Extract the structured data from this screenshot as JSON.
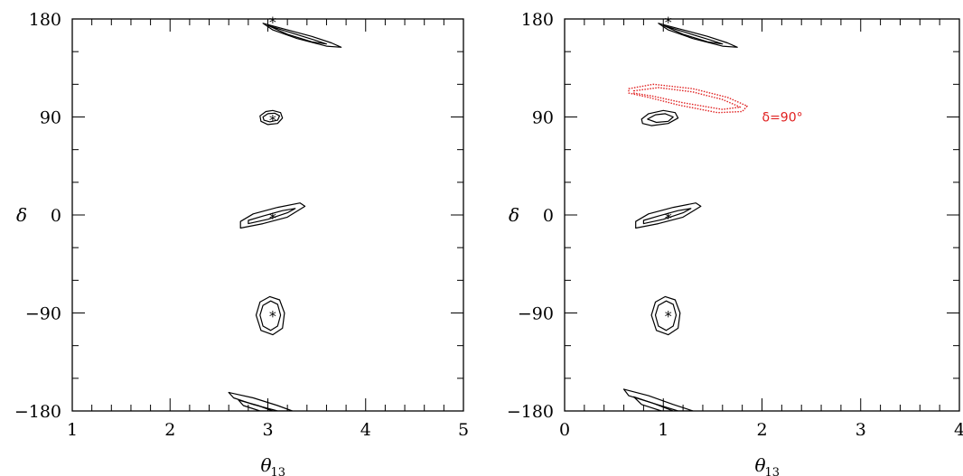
{
  "chart_data": [
    {
      "type": "scatter",
      "panel": "left",
      "xlabel": "θ",
      "xlabel_sub": "13",
      "ylabel": "δ",
      "xlim": [
        1,
        5
      ],
      "ylim": [
        -180,
        180
      ],
      "x_ticks": [
        "1",
        "2",
        "3",
        "4",
        "5"
      ],
      "y_ticks": [
        "−180",
        "−90",
        "0",
        "90",
        "180"
      ],
      "y_tick_values": [
        -180,
        -90,
        0,
        90,
        180
      ],
      "x_tick_values": [
        1,
        2,
        3,
        4,
        5
      ],
      "true_points": [
        {
          "x": 3.05,
          "y": 180
        },
        {
          "x": 3.05,
          "y": 90
        },
        {
          "x": 3.05,
          "y": 0
        },
        {
          "x": 3.05,
          "y": -90
        }
      ],
      "contours": [
        {
          "name": "",
          "color": "#000000",
          "style": "solid",
          "points": [
            [
              2.95,
              176
            ],
            [
              3.2,
              170
            ],
            [
              3.45,
              164
            ],
            [
              3.65,
              158
            ],
            [
              3.75,
              154
            ],
            [
              3.6,
              155
            ],
            [
              3.3,
              162
            ],
            [
              3.05,
              170
            ],
            [
              2.95,
              176
            ]
          ]
        },
        {
          "name": "",
          "color": "#000000",
          "style": "solid",
          "points": [
            [
              3.0,
              174
            ],
            [
              3.25,
              167
            ],
            [
              3.5,
              160
            ],
            [
              3.6,
              157
            ],
            [
              3.45,
              159
            ],
            [
              3.2,
              166
            ],
            [
              3.0,
              174
            ]
          ]
        },
        {
          "name": "",
          "color": "#000000",
          "style": "solid",
          "points": [
            [
              2.92,
              91
            ],
            [
              2.98,
              95
            ],
            [
              3.05,
              96
            ],
            [
              3.13,
              94
            ],
            [
              3.15,
              89
            ],
            [
              3.1,
              84
            ],
            [
              3.0,
              83
            ],
            [
              2.93,
              86
            ],
            [
              2.92,
              91
            ]
          ]
        },
        {
          "name": "",
          "color": "#000000",
          "style": "solid",
          "points": [
            [
              2.95,
              90
            ],
            [
              3.0,
              93
            ],
            [
              3.07,
              93.5
            ],
            [
              3.12,
              91
            ],
            [
              3.1,
              87
            ],
            [
              3.02,
              85.5
            ],
            [
              2.96,
              87
            ],
            [
              2.95,
              90
            ]
          ]
        },
        {
          "name": "",
          "color": "#000000",
          "style": "solid",
          "points": [
            [
              2.72,
              -12
            ],
            [
              2.95,
              -8
            ],
            [
              3.2,
              -2
            ],
            [
              3.38,
              8
            ],
            [
              3.33,
              11
            ],
            [
              3.1,
              7
            ],
            [
              2.85,
              1
            ],
            [
              2.72,
              -6
            ],
            [
              2.72,
              -12
            ]
          ]
        },
        {
          "name": "",
          "color": "#000000",
          "style": "solid",
          "points": [
            [
              2.8,
              -8
            ],
            [
              3.0,
              -4
            ],
            [
              3.2,
              2
            ],
            [
              3.28,
              6
            ],
            [
              3.15,
              4
            ],
            [
              2.95,
              -1
            ],
            [
              2.8,
              -5
            ],
            [
              2.8,
              -8
            ]
          ]
        },
        {
          "name": "",
          "color": "#000000",
          "style": "solid",
          "points": [
            [
              2.88,
              -92
            ],
            [
              2.92,
              -80
            ],
            [
              3.02,
              -75
            ],
            [
              3.12,
              -78
            ],
            [
              3.17,
              -90
            ],
            [
              3.15,
              -104
            ],
            [
              3.05,
              -110
            ],
            [
              2.93,
              -106
            ],
            [
              2.88,
              -92
            ]
          ]
        },
        {
          "name": "",
          "color": "#000000",
          "style": "solid",
          "points": [
            [
              2.92,
              -92
            ],
            [
              2.95,
              -83
            ],
            [
              3.03,
              -79
            ],
            [
              3.1,
              -82
            ],
            [
              3.13,
              -92
            ],
            [
              3.1,
              -102
            ],
            [
              3.03,
              -106
            ],
            [
              2.95,
              -102
            ],
            [
              2.92,
              -92
            ]
          ]
        },
        {
          "name": "",
          "color": "#000000",
          "style": "solid",
          "points": [
            [
              2.6,
              -163
            ],
            [
              2.85,
              -168
            ],
            [
              3.1,
              -175
            ],
            [
              3.25,
              -180
            ],
            [
              3.1,
              -180
            ],
            [
              2.85,
              -174
            ],
            [
              2.65,
              -168
            ],
            [
              2.6,
              -163
            ]
          ]
        },
        {
          "name": "",
          "color": "#000000",
          "style": "solid",
          "points": [
            [
              2.7,
              -170
            ],
            [
              2.9,
              -175
            ],
            [
              3.05,
              -180
            ],
            [
              2.92,
              -180
            ],
            [
              2.75,
              -175
            ],
            [
              2.7,
              -170
            ]
          ]
        }
      ]
    },
    {
      "type": "scatter",
      "panel": "right",
      "xlabel": "θ",
      "xlabel_sub": "13",
      "ylabel": "δ",
      "xlim": [
        0,
        4
      ],
      "ylim": [
        -180,
        180
      ],
      "x_ticks": [
        "0",
        "1",
        "2",
        "3",
        "4"
      ],
      "y_ticks": [
        "−180",
        "−90",
        "0",
        "90",
        "180"
      ],
      "y_tick_values": [
        -180,
        -90,
        0,
        90,
        180
      ],
      "x_tick_values": [
        0,
        1,
        2,
        3,
        4
      ],
      "true_points": [
        {
          "x": 1.05,
          "y": 180
        },
        {
          "x": 1.05,
          "y": 0
        },
        {
          "x": 1.05,
          "y": -90
        }
      ],
      "annotation": {
        "text": "δ=90°",
        "x": 2.0,
        "y": 90,
        "color": "#e02020"
      },
      "contours": [
        {
          "name": "",
          "color": "#000000",
          "style": "solid",
          "points": [
            [
              0.95,
              176
            ],
            [
              1.2,
              170
            ],
            [
              1.45,
              164
            ],
            [
              1.65,
              158
            ],
            [
              1.75,
              154
            ],
            [
              1.6,
              155
            ],
            [
              1.3,
              162
            ],
            [
              1.05,
              170
            ],
            [
              0.95,
              176
            ]
          ]
        },
        {
          "name": "",
          "color": "#000000",
          "style": "solid",
          "points": [
            [
              1.0,
              174
            ],
            [
              1.25,
              167
            ],
            [
              1.5,
              160
            ],
            [
              1.6,
              157
            ],
            [
              1.45,
              159
            ],
            [
              1.2,
              166
            ],
            [
              1.0,
              174
            ]
          ]
        },
        {
          "name": "",
          "color": "#000000",
          "style": "solid",
          "points": [
            [
              0.78,
              88
            ],
            [
              0.85,
              93
            ],
            [
              1.0,
              96
            ],
            [
              1.12,
              94
            ],
            [
              1.15,
              89
            ],
            [
              1.05,
              84
            ],
            [
              0.88,
              82
            ],
            [
              0.79,
              84
            ],
            [
              0.78,
              88
            ]
          ]
        },
        {
          "name": "",
          "color": "#000000",
          "style": "solid",
          "points": [
            [
              0.84,
              88
            ],
            [
              0.92,
              92
            ],
            [
              1.02,
              93
            ],
            [
              1.1,
              90
            ],
            [
              1.05,
              86
            ],
            [
              0.93,
              85
            ],
            [
              0.84,
              88
            ]
          ]
        },
        {
          "name": "",
          "color": "#000000",
          "style": "solid",
          "points": [
            [
              0.72,
              -12
            ],
            [
              0.95,
              -8
            ],
            [
              1.2,
              -2
            ],
            [
              1.38,
              8
            ],
            [
              1.33,
              11
            ],
            [
              1.1,
              7
            ],
            [
              0.85,
              1
            ],
            [
              0.72,
              -6
            ],
            [
              0.72,
              -12
            ]
          ]
        },
        {
          "name": "",
          "color": "#000000",
          "style": "solid",
          "points": [
            [
              0.8,
              -8
            ],
            [
              1.0,
              -4
            ],
            [
              1.2,
              2
            ],
            [
              1.28,
              6
            ],
            [
              1.15,
              4
            ],
            [
              0.95,
              -1
            ],
            [
              0.8,
              -5
            ],
            [
              0.8,
              -8
            ]
          ]
        },
        {
          "name": "",
          "color": "#000000",
          "style": "solid",
          "points": [
            [
              0.88,
              -92
            ],
            [
              0.92,
              -80
            ],
            [
              1.02,
              -75
            ],
            [
              1.12,
              -78
            ],
            [
              1.17,
              -90
            ],
            [
              1.15,
              -104
            ],
            [
              1.05,
              -110
            ],
            [
              0.93,
              -106
            ],
            [
              0.88,
              -92
            ]
          ]
        },
        {
          "name": "",
          "color": "#000000",
          "style": "solid",
          "points": [
            [
              0.92,
              -92
            ],
            [
              0.95,
              -83
            ],
            [
              1.03,
              -79
            ],
            [
              1.1,
              -82
            ],
            [
              1.13,
              -92
            ],
            [
              1.1,
              -102
            ],
            [
              1.03,
              -106
            ],
            [
              0.95,
              -102
            ],
            [
              0.92,
              -92
            ]
          ]
        },
        {
          "name": "",
          "color": "#000000",
          "style": "solid",
          "points": [
            [
              0.6,
              -160
            ],
            [
              0.85,
              -166
            ],
            [
              1.1,
              -174
            ],
            [
              1.3,
              -180
            ],
            [
              1.15,
              -180
            ],
            [
              0.9,
              -173
            ],
            [
              0.65,
              -166
            ],
            [
              0.6,
              -160
            ]
          ]
        },
        {
          "name": "",
          "color": "#000000",
          "style": "solid",
          "points": [
            [
              0.7,
              -167
            ],
            [
              0.9,
              -173
            ],
            [
              1.1,
              -180
            ],
            [
              0.98,
              -180
            ],
            [
              0.78,
              -174
            ],
            [
              0.7,
              -167
            ]
          ]
        },
        {
          "name": "",
          "color": "#e02020",
          "style": "dotted",
          "points": [
            [
              0.65,
              116
            ],
            [
              0.9,
              120
            ],
            [
              1.3,
              116
            ],
            [
              1.65,
              108
            ],
            [
              1.85,
              100
            ],
            [
              1.8,
              95
            ],
            [
              1.55,
              94
            ],
            [
              1.15,
              101
            ],
            [
              0.85,
              108
            ],
            [
              0.65,
              112
            ],
            [
              0.65,
              116
            ]
          ]
        },
        {
          "name": "",
          "color": "#e02020",
          "style": "dotted",
          "points": [
            [
              0.7,
              114
            ],
            [
              0.95,
              117
            ],
            [
              1.3,
              113
            ],
            [
              1.6,
              106
            ],
            [
              1.78,
              99
            ],
            [
              1.6,
              97
            ],
            [
              1.2,
              103
            ],
            [
              0.9,
              109
            ],
            [
              0.7,
              112
            ],
            [
              0.7,
              114
            ]
          ]
        }
      ]
    }
  ]
}
